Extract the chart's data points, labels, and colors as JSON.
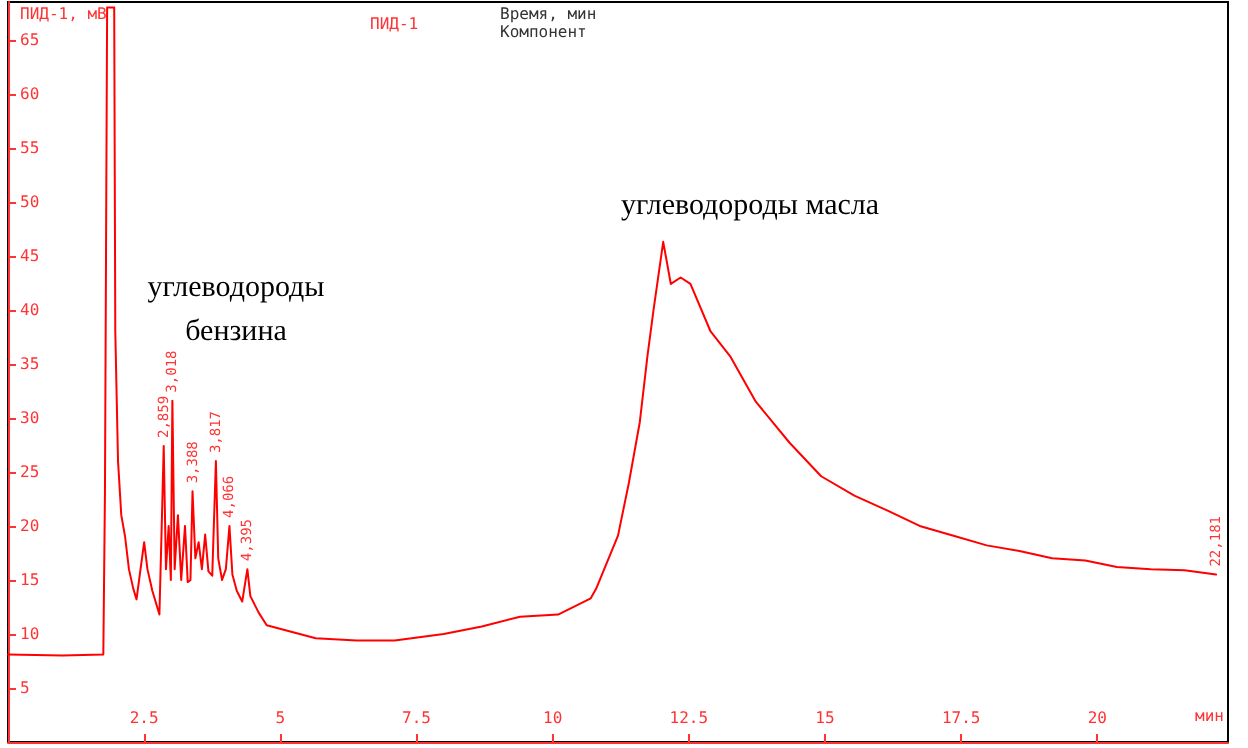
{
  "chart_data": {
    "type": "line",
    "xlabel": "мин",
    "ylabel": "ПИД-1, мВ",
    "annotations": [
      "Время, мин",
      "Компонент",
      {
        "text": "2,859",
        "x": 2.859,
        "y": 27.4
      },
      {
        "text": "3,018",
        "x": 3.018,
        "y": 31.6
      },
      {
        "text": "3,388",
        "x": 3.388,
        "y": 23.2
      },
      {
        "text": "3,817",
        "x": 3.817,
        "y": 26
      },
      {
        "text": "4,066",
        "x": 4.066,
        "y": 20
      },
      {
        "text": "4,395",
        "x": 4.395,
        "y": 16
      },
      {
        "text": "22,181",
        "x": 22.181,
        "y": 15.5
      },
      "углеводороды\nбензина",
      "углеводороды масла"
    ],
    "xlim": [
      0,
      22.4
    ],
    "ylim": [
      0,
      68.5
    ],
    "xticks": [
      2.5,
      5,
      7.5,
      10,
      12.5,
      15,
      17.5,
      20
    ],
    "yticks": [
      5,
      10,
      15,
      20,
      25,
      30,
      35,
      40,
      45,
      50,
      55,
      60,
      65
    ],
    "grid": false,
    "legend": "top left",
    "marker": "none",
    "line_style": "solid",
    "series": [
      {
        "name": "ПИД-1",
        "color": "#ff0000",
        "x": [
          0,
          1.0,
          1.75,
          1.78,
          1.82,
          1.95,
          1.97,
          2.02,
          2.08,
          2.15,
          2.22,
          2.3,
          2.36,
          2.42,
          2.5,
          2.56,
          2.65,
          2.78,
          2.82,
          2.859,
          2.9,
          2.95,
          2.99,
          3.018,
          3.06,
          3.12,
          3.18,
          3.25,
          3.3,
          3.35,
          3.388,
          3.44,
          3.5,
          3.56,
          3.62,
          3.68,
          3.75,
          3.817,
          3.86,
          3.93,
          4.0,
          4.066,
          4.12,
          4.2,
          4.3,
          4.395,
          4.45,
          4.6,
          4.75,
          5.65,
          6.4,
          7.1,
          8.0,
          8.7,
          9.4,
          10.1,
          10.7,
          10.8,
          11.2,
          11.4,
          11.6,
          11.74,
          11.85,
          12.03,
          12.17,
          12.35,
          12.53,
          12.9,
          13.26,
          13.73,
          14.35,
          14.93,
          15.54,
          16.16,
          16.74,
          17.36,
          17.97,
          18.55,
          19.17,
          19.78,
          20.36,
          20.98,
          21.6,
          22.18
        ],
        "values": [
          8.1,
          8.0,
          8.1,
          23,
          68,
          68,
          38,
          26,
          21,
          19,
          16,
          14.2,
          13.2,
          15.5,
          18.5,
          16,
          14,
          11.8,
          19.5,
          27.4,
          16,
          20,
          15,
          31.6,
          16,
          21,
          15,
          20,
          14.8,
          15,
          23.2,
          17,
          18.5,
          16,
          19.2,
          15.8,
          15.4,
          26,
          17,
          15,
          16,
          20,
          15.5,
          14,
          13,
          16,
          13.5,
          12,
          10.8,
          9.6,
          9.4,
          9.4,
          10,
          10.7,
          11.6,
          11.8,
          13.3,
          14.2,
          19.1,
          24,
          29.6,
          35.7,
          39.9,
          46.3,
          42.4,
          43,
          42.4,
          38,
          35.7,
          31.5,
          27.7,
          24.6,
          22.8,
          21.4,
          20,
          19.1,
          18.2,
          17.7,
          17,
          16.8,
          16.2,
          16,
          15.9,
          15.5
        ]
      }
    ]
  }
}
